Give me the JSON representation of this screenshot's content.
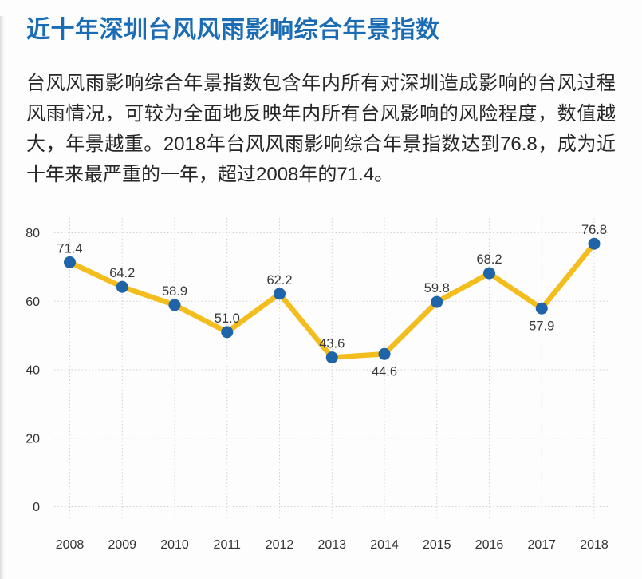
{
  "page": {
    "title": "近十年深圳台风风雨影响综合年景指数",
    "description": "台风风雨影响综合年景指数包含年内所有对深圳造成影响的台风过程风雨情况，可较为全面地反映年内所有台风影响的风险程度，数值越大，年景越重。2018年台风风雨影响综合年景指数达到76.8，成为近十年来最严重的一年，超过2008年的71.4。"
  },
  "colors": {
    "title": "#1A6CB4",
    "line": "#F3BD1E",
    "marker": "#1F63A9",
    "grid": "#CFCFCF",
    "axis_text": "#333333",
    "label_text": "#383838",
    "body_text": "#262626",
    "background": "#FDFDFD"
  },
  "chart_data": {
    "type": "line",
    "title": "近十年深圳台风风雨影响综合年景指数",
    "categories": [
      "2008",
      "2009",
      "2010",
      "2011",
      "2012",
      "2013",
      "2014",
      "2015",
      "2016",
      "2017",
      "2018"
    ],
    "values": [
      71.4,
      64.2,
      58.9,
      51.0,
      62.2,
      43.6,
      44.6,
      59.8,
      68.2,
      57.9,
      76.8
    ],
    "labels": [
      "71.4",
      "64.2",
      "58.9",
      "51.0",
      "62.2",
      "43.6",
      "44.6",
      "59.8",
      "68.2",
      "57.9",
      "76.8"
    ],
    "label_positions": [
      "above",
      "above",
      "above",
      "above",
      "above",
      "above",
      "below",
      "above",
      "above",
      "below",
      "above"
    ],
    "xlabel": "",
    "ylabel": "",
    "yticks": [
      0,
      20,
      40,
      60,
      80
    ],
    "ylim": [
      0,
      88
    ],
    "grid": "dotted",
    "legend": "none"
  }
}
